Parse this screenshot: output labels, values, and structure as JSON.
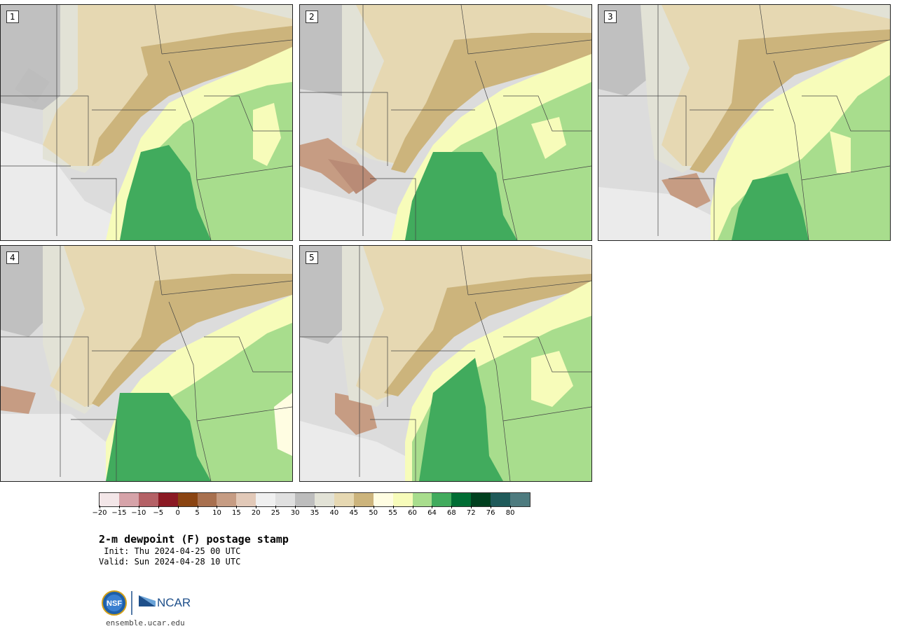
{
  "panels": [
    {
      "label": "1"
    },
    {
      "label": "2"
    },
    {
      "label": "3"
    },
    {
      "label": "4"
    },
    {
      "label": "5"
    }
  ],
  "colorbar": {
    "colors": [
      "#f3e6e8",
      "#d6a3a9",
      "#b46166",
      "#8b1a24",
      "#8a4412",
      "#a8704f",
      "#c69c83",
      "#e2c9b8",
      "#f0f0f0",
      "#e0e0e0",
      "#bdbdbd",
      "#e2e2d6",
      "#e6d8b2",
      "#ccb47c",
      "#fffde2",
      "#f7fcba",
      "#a8dd8d",
      "#41ab5d",
      "#006d34",
      "#00401f",
      "#1f5a5a",
      "#4e7b7f"
    ],
    "ticks": [
      "−20",
      "−15",
      "−10",
      "−5",
      "0",
      "5",
      "10",
      "15",
      "20",
      "25",
      "30",
      "35",
      "40",
      "45",
      "50",
      "55",
      "60",
      "64",
      "68",
      "72",
      "76",
      "80"
    ]
  },
  "title": "2-m dewpoint (F) postage stamp",
  "init": " Init: Thu 2024-04-25 00 UTC",
  "valid": "Valid: Sun 2024-04-28 10 UTC",
  "logos": {
    "nsf": "NSF",
    "ncar": "NCAR"
  },
  "website": "ensemble.ucar.edu"
}
